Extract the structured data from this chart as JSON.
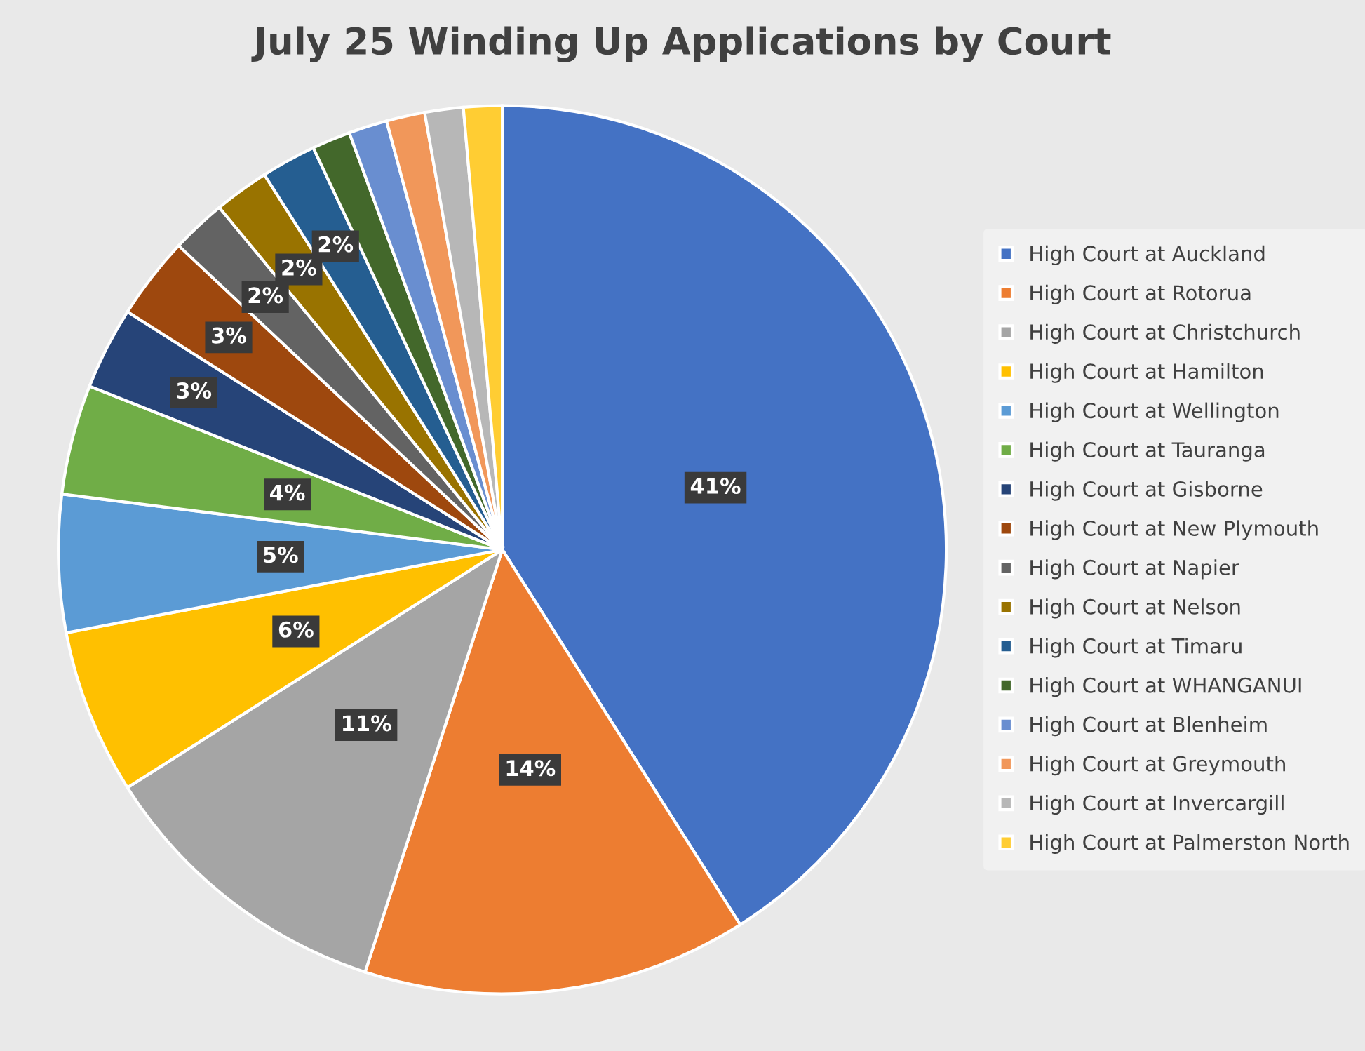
{
  "chart_data": {
    "type": "pie",
    "title": "July 25 Winding Up Applications by Court",
    "categories": [
      "High Court at Auckland",
      "High Court at Rotorua",
      "High Court at Christchurch",
      "High Court at Hamilton",
      "High Court at Wellington",
      "High Court at Tauranga",
      "High Court at Gisborne",
      "High Court at New Plymouth",
      "High Court at Napier",
      "High Court at Nelson",
      "High Court at Timaru",
      "High Court at WHANGANUI",
      "High Court at Blenheim",
      "High Court at Greymouth",
      "High Court at Invercargill",
      "High Court at Palmerston North"
    ],
    "values": [
      41,
      14,
      11,
      6,
      5,
      4,
      3,
      3,
      2,
      2,
      2,
      1.4,
      1.4,
      1.4,
      1.4,
      1.4
    ],
    "value_labels": [
      "41%",
      "14%",
      "11%",
      "6%",
      "5%",
      "4%",
      "3%",
      "3%",
      "2%",
      "2%",
      "2%",
      null,
      null,
      null,
      null,
      null
    ],
    "colors": [
      "#4472c4",
      "#ed7d31",
      "#a5a5a5",
      "#ffc000",
      "#5b9bd5",
      "#70ad47",
      "#264478",
      "#9e480e",
      "#636363",
      "#997300",
      "#255e91",
      "#43682b",
      "#698ed0",
      "#f1975a",
      "#b7b7b7",
      "#ffcd33"
    ],
    "legend": "right"
  }
}
